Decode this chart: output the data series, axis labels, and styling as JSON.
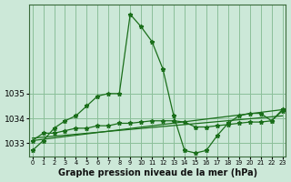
{
  "background_color": "#cce8d8",
  "grid_color": "#8bbf9a",
  "line_color": "#1a6e1a",
  "marker_color": "#1a6e1a",
  "title": "Graphe pression niveau de la mer (hPa)",
  "hours": [
    0,
    1,
    2,
    3,
    4,
    5,
    6,
    7,
    8,
    9,
    10,
    11,
    12,
    13,
    14,
    15,
    16,
    17,
    18,
    19,
    20,
    21,
    22,
    23
  ],
  "series1": [
    1032.7,
    1033.1,
    1033.6,
    1033.9,
    1034.1,
    1034.5,
    1034.9,
    1035.0,
    1035.0,
    1038.2,
    1037.7,
    1037.1,
    1036.0,
    1034.1,
    1032.7,
    1032.6,
    1032.7,
    1033.3,
    1033.8,
    1034.1,
    1034.2,
    1034.2,
    1033.9,
    1034.3
  ],
  "series2": [
    1033.1,
    1033.4,
    1033.4,
    1033.5,
    1033.6,
    1033.6,
    1033.7,
    1033.7,
    1033.8,
    1033.8,
    1033.85,
    1033.9,
    1033.9,
    1033.9,
    1033.85,
    1033.65,
    1033.65,
    1033.7,
    1033.75,
    1033.8,
    1033.85,
    1033.85,
    1033.9,
    1034.35
  ],
  "series3_x": [
    0,
    23
  ],
  "series3_y": [
    1033.1,
    1034.35
  ],
  "series4_x": [
    0,
    23
  ],
  "series4_y": [
    1033.2,
    1034.1
  ],
  "ylim": [
    1032.45,
    1038.6
  ],
  "yticks": [
    1033,
    1034,
    1035
  ],
  "xlim": [
    -0.3,
    23.3
  ]
}
